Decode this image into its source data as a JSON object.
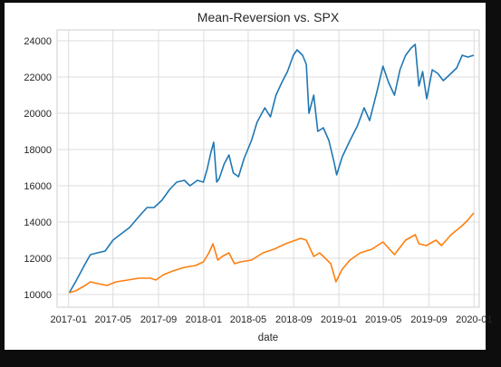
{
  "chart_data": {
    "type": "line",
    "title": "Mean-Reversion vs. SPX",
    "xlabel": "date",
    "ylabel": "",
    "x_range": [
      "2016-12-01",
      "2020-01-15"
    ],
    "ylim": [
      9300,
      24600
    ],
    "grid": true,
    "x_ticks": [
      {
        "date": "2017-01",
        "label": "2017-01"
      },
      {
        "date": "2017-05",
        "label": "2017-05"
      },
      {
        "date": "2017-09",
        "label": "2017-09"
      },
      {
        "date": "2018-01",
        "label": "2018-01"
      },
      {
        "date": "2018-05",
        "label": "2018-05"
      },
      {
        "date": "2018-09",
        "label": "2018-09"
      },
      {
        "date": "2019-01",
        "label": "2019-01"
      },
      {
        "date": "2019-05",
        "label": "2019-05"
      },
      {
        "date": "2019-09",
        "label": "2019-09"
      },
      {
        "date": "2020-01",
        "label": "2020-01"
      }
    ],
    "y_ticks": [
      10000,
      12000,
      14000,
      16000,
      18000,
      20000,
      22000,
      24000
    ],
    "series": [
      {
        "color": "#1f77b4",
        "points": [
          [
            "2017-01-03",
            10100
          ],
          [
            "2017-01-20",
            10700
          ],
          [
            "2017-02-15",
            11700
          ],
          [
            "2017-03-01",
            12200
          ],
          [
            "2017-03-20",
            12300
          ],
          [
            "2017-04-10",
            12400
          ],
          [
            "2017-05-01",
            13000
          ],
          [
            "2017-05-20",
            13300
          ],
          [
            "2017-06-15",
            13700
          ],
          [
            "2017-07-10",
            14300
          ],
          [
            "2017-08-01",
            14800
          ],
          [
            "2017-08-20",
            14800
          ],
          [
            "2017-09-10",
            15200
          ],
          [
            "2017-10-01",
            15800
          ],
          [
            "2017-10-20",
            16200
          ],
          [
            "2017-11-10",
            16300
          ],
          [
            "2017-11-25",
            16000
          ],
          [
            "2017-12-15",
            16300
          ],
          [
            "2017-12-31",
            16200
          ],
          [
            "2018-01-10",
            16900
          ],
          [
            "2018-01-20",
            17800
          ],
          [
            "2018-01-28",
            18400
          ],
          [
            "2018-02-05",
            16200
          ],
          [
            "2018-02-12",
            16400
          ],
          [
            "2018-02-25",
            17200
          ],
          [
            "2018-03-10",
            17700
          ],
          [
            "2018-03-22",
            16700
          ],
          [
            "2018-04-05",
            16500
          ],
          [
            "2018-04-20",
            17500
          ],
          [
            "2018-05-10",
            18500
          ],
          [
            "2018-05-25",
            19500
          ],
          [
            "2018-06-15",
            20300
          ],
          [
            "2018-06-30",
            19800
          ],
          [
            "2018-07-15",
            21000
          ],
          [
            "2018-07-31",
            21700
          ],
          [
            "2018-08-15",
            22300
          ],
          [
            "2018-08-31",
            23200
          ],
          [
            "2018-09-10",
            23500
          ],
          [
            "2018-09-25",
            23200
          ],
          [
            "2018-10-05",
            22700
          ],
          [
            "2018-10-12",
            20000
          ],
          [
            "2018-10-25",
            21000
          ],
          [
            "2018-11-05",
            19000
          ],
          [
            "2018-11-20",
            19200
          ],
          [
            "2018-12-05",
            18500
          ],
          [
            "2018-12-20",
            17200
          ],
          [
            "2018-12-26",
            16600
          ],
          [
            "2019-01-10",
            17600
          ],
          [
            "2019-01-31",
            18500
          ],
          [
            "2019-02-20",
            19300
          ],
          [
            "2019-03-10",
            20300
          ],
          [
            "2019-03-25",
            19600
          ],
          [
            "2019-04-15",
            21300
          ],
          [
            "2019-04-30",
            22600
          ],
          [
            "2019-05-15",
            21700
          ],
          [
            "2019-05-31",
            21000
          ],
          [
            "2019-06-15",
            22400
          ],
          [
            "2019-06-30",
            23200
          ],
          [
            "2019-07-15",
            23600
          ],
          [
            "2019-07-26",
            23800
          ],
          [
            "2019-08-05",
            21500
          ],
          [
            "2019-08-15",
            22300
          ],
          [
            "2019-08-26",
            20800
          ],
          [
            "2019-09-10",
            22400
          ],
          [
            "2019-09-25",
            22200
          ],
          [
            "2019-10-10",
            21800
          ],
          [
            "2019-10-31",
            22200
          ],
          [
            "2019-11-15",
            22500
          ],
          [
            "2019-11-30",
            23200
          ],
          [
            "2019-12-15",
            23100
          ],
          [
            "2019-12-31",
            23200
          ]
        ]
      },
      {
        "color": "#ff7f0e",
        "points": [
          [
            "2017-01-03",
            10100
          ],
          [
            "2017-01-20",
            10200
          ],
          [
            "2017-02-15",
            10500
          ],
          [
            "2017-03-01",
            10700
          ],
          [
            "2017-03-20",
            10600
          ],
          [
            "2017-04-15",
            10500
          ],
          [
            "2017-05-10",
            10700
          ],
          [
            "2017-06-10",
            10800
          ],
          [
            "2017-07-10",
            10900
          ],
          [
            "2017-08-10",
            10900
          ],
          [
            "2017-08-25",
            10800
          ],
          [
            "2017-09-15",
            11100
          ],
          [
            "2017-10-10",
            11300
          ],
          [
            "2017-11-10",
            11500
          ],
          [
            "2017-12-10",
            11600
          ],
          [
            "2017-12-31",
            11800
          ],
          [
            "2018-01-15",
            12300
          ],
          [
            "2018-01-26",
            12800
          ],
          [
            "2018-02-08",
            11900
          ],
          [
            "2018-02-20",
            12100
          ],
          [
            "2018-03-10",
            12300
          ],
          [
            "2018-03-25",
            11700
          ],
          [
            "2018-04-10",
            11800
          ],
          [
            "2018-05-10",
            11900
          ],
          [
            "2018-06-10",
            12300
          ],
          [
            "2018-07-10",
            12500
          ],
          [
            "2018-08-10",
            12800
          ],
          [
            "2018-09-20",
            13100
          ],
          [
            "2018-10-05",
            13000
          ],
          [
            "2018-10-25",
            12100
          ],
          [
            "2018-11-10",
            12300
          ],
          [
            "2018-11-25",
            12000
          ],
          [
            "2018-12-10",
            11700
          ],
          [
            "2018-12-24",
            10700
          ],
          [
            "2019-01-10",
            11400
          ],
          [
            "2019-01-31",
            11900
          ],
          [
            "2019-02-28",
            12300
          ],
          [
            "2019-03-31",
            12500
          ],
          [
            "2019-04-30",
            12900
          ],
          [
            "2019-05-31",
            12200
          ],
          [
            "2019-06-30",
            13000
          ],
          [
            "2019-07-26",
            13300
          ],
          [
            "2019-08-05",
            12800
          ],
          [
            "2019-08-25",
            12700
          ],
          [
            "2019-09-20",
            13000
          ],
          [
            "2019-10-05",
            12700
          ],
          [
            "2019-10-31",
            13300
          ],
          [
            "2019-11-30",
            13800
          ],
          [
            "2019-12-15",
            14100
          ],
          [
            "2019-12-31",
            14500
          ]
        ]
      }
    ]
  }
}
